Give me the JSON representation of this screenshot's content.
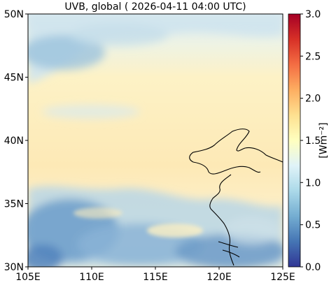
{
  "title": "UVB, global ( 2026-04-11 04:00 UTC)",
  "map": {
    "x_ticks": [
      "105E",
      "110E",
      "115E",
      "120E",
      "125E"
    ],
    "y_ticks": [
      "50N",
      "45N",
      "40N",
      "35N",
      "30N"
    ],
    "lon_range": [
      105,
      125
    ],
    "lat_range": [
      30,
      50
    ]
  },
  "colorbar": {
    "label": "[Wm⁻²]",
    "ticks": [
      "3.0",
      "2.5",
      "2.0",
      "1.5",
      "1.0",
      "0.5",
      "0.0"
    ],
    "range": [
      0.0,
      3.0
    ],
    "colors": [
      "#313695",
      "#4575b4",
      "#74add1",
      "#abd9e9",
      "#e0f3f8",
      "#ffffbf",
      "#fee090",
      "#fdae61",
      "#f46d43",
      "#d73027",
      "#a50026"
    ]
  }
}
